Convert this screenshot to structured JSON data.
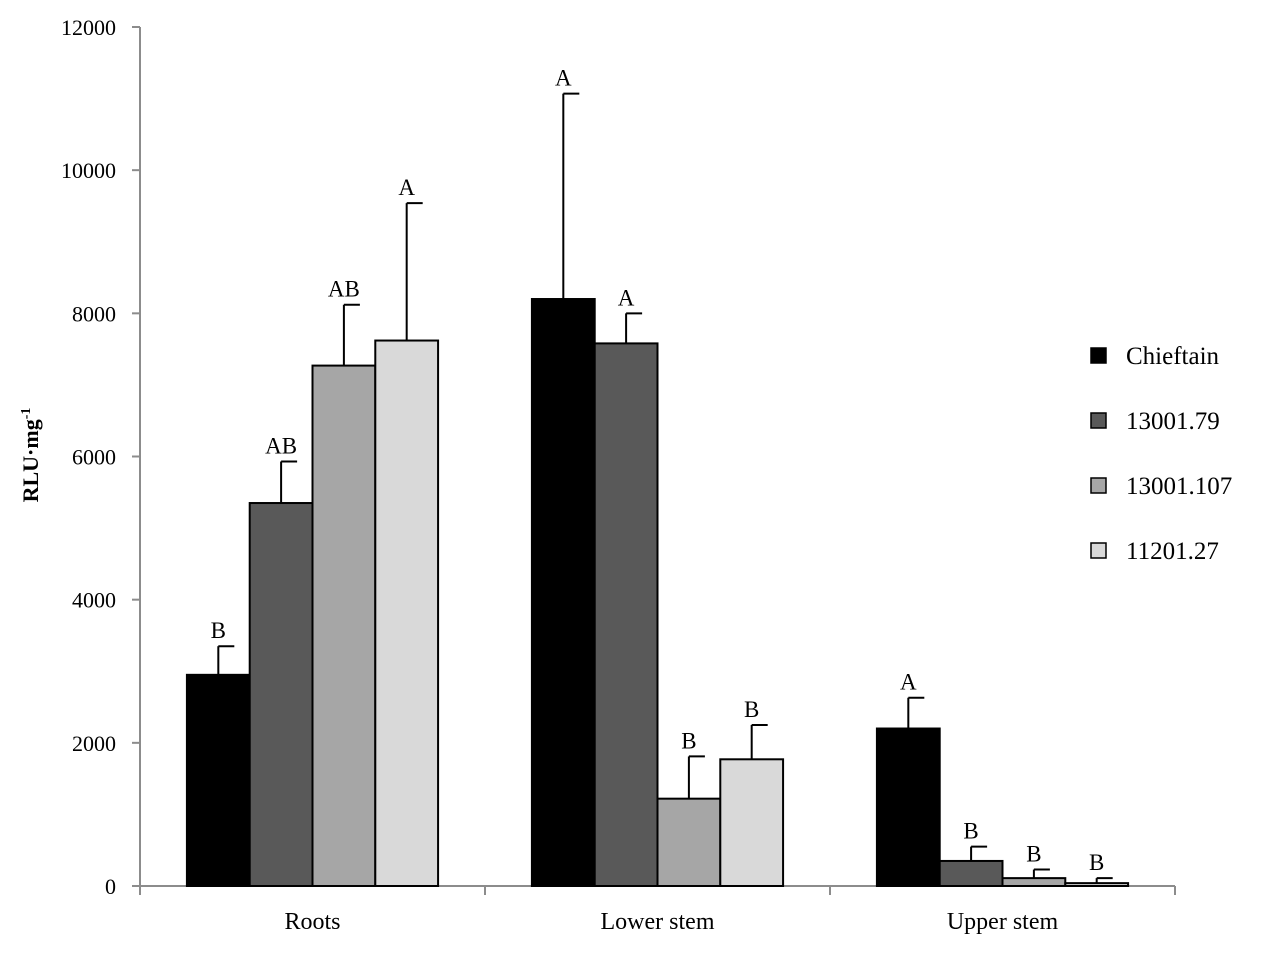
{
  "chart_data": {
    "type": "bar",
    "title": "",
    "xlabel": "",
    "ylabel": "RLU·mg",
    "ylabel_superscript": "-1",
    "ylim": [
      0,
      12000
    ],
    "yticks": [
      0,
      2000,
      4000,
      6000,
      8000,
      10000,
      12000
    ],
    "grid": false,
    "legend_position": "right",
    "categories": [
      "Roots",
      "Lower stem",
      "Upper stem"
    ],
    "series": [
      {
        "name": "Chieftain",
        "color": "#000000",
        "values": [
          2950,
          8200,
          2200
        ],
        "errors": [
          400,
          2870,
          430
        ],
        "labels": [
          "B",
          "A",
          "A"
        ]
      },
      {
        "name": "13001.79",
        "color": "#595959",
        "values": [
          5350,
          7580,
          350
        ],
        "errors": [
          580,
          420,
          200
        ],
        "labels": [
          "AB",
          "A",
          "B"
        ]
      },
      {
        "name": "13001.107",
        "color": "#a6a6a6",
        "values": [
          7270,
          1220,
          110
        ],
        "errors": [
          850,
          590,
          120
        ],
        "labels": [
          "AB",
          "B",
          "B"
        ]
      },
      {
        "name": "11201.27",
        "color": "#d9d9d9",
        "values": [
          7620,
          1770,
          40
        ],
        "errors": [
          1920,
          480,
          70
        ],
        "labels": [
          "A",
          "B",
          "B"
        ]
      }
    ]
  }
}
